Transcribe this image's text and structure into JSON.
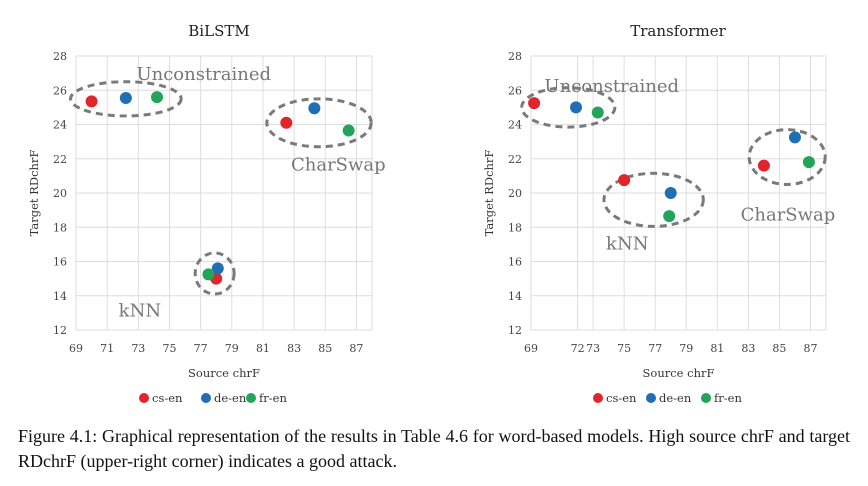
{
  "figure": {
    "legend": [
      {
        "label": "cs-en",
        "color": "#e0262b"
      },
      {
        "label": "de-en",
        "color": "#1f6fb4"
      },
      {
        "label": "fr-en",
        "color": "#22a45a"
      }
    ]
  },
  "chart_data": [
    {
      "type": "scatter",
      "title": "BiLSTM",
      "xlabel": "Source chrF",
      "ylabel": "Target RDchrF",
      "xlim": [
        69,
        88
      ],
      "ylim": [
        12,
        28
      ],
      "xticks": [
        69,
        71,
        73,
        75,
        77,
        79,
        81,
        83,
        85,
        87
      ],
      "yticks": [
        12,
        14,
        16,
        18,
        20,
        22,
        24,
        26,
        28
      ],
      "grid": true,
      "legend": "bottom",
      "series": [
        {
          "name": "cs-en",
          "color": "#e0262b",
          "points": [
            {
              "x": 70.0,
              "y": 25.35
            },
            {
              "x": 82.5,
              "y": 24.1
            },
            {
              "x": 78.0,
              "y": 15.0
            }
          ]
        },
        {
          "name": "de-en",
          "color": "#1f6fb4",
          "points": [
            {
              "x": 72.2,
              "y": 25.55
            },
            {
              "x": 84.3,
              "y": 24.95
            },
            {
              "x": 78.1,
              "y": 15.6
            }
          ]
        },
        {
          "name": "fr-en",
          "color": "#22a45a",
          "points": [
            {
              "x": 74.2,
              "y": 25.6
            },
            {
              "x": 86.5,
              "y": 23.65
            },
            {
              "x": 77.5,
              "y": 15.25
            }
          ]
        }
      ],
      "annotations": [
        {
          "text": "Unconstrained",
          "x": 77.2,
          "y": 26.6,
          "anchor": "middle"
        },
        {
          "text": "CharSwap",
          "x": 82.8,
          "y": 21.3,
          "anchor": "start"
        },
        {
          "text": "kNN",
          "x": 73.1,
          "y": 12.8,
          "anchor": "middle"
        }
      ],
      "clusters": [
        {
          "cx": 72.2,
          "cy": 25.5,
          "rx": 3.55,
          "ry": 1.0
        },
        {
          "cx": 84.6,
          "cy": 24.1,
          "rx": 3.35,
          "ry": 1.4
        },
        {
          "cx": 77.9,
          "cy": 15.3,
          "rx": 1.25,
          "ry": 1.2
        }
      ]
    },
    {
      "type": "scatter",
      "title": "Transformer",
      "xlabel": "Source chrF",
      "ylabel": "Target RDchrF",
      "xlim": [
        69,
        88
      ],
      "ylim": [
        12,
        28
      ],
      "xticks": [
        69,
        72,
        73,
        75,
        77,
        79,
        81,
        83,
        85,
        87
      ],
      "yticks": [
        12,
        14,
        16,
        18,
        20,
        22,
        24,
        26,
        28
      ],
      "grid": true,
      "legend": "bottom",
      "series": [
        {
          "name": "cs-en",
          "color": "#e0262b",
          "points": [
            {
              "x": 69.2,
              "y": 25.25
            },
            {
              "x": 75.0,
              "y": 20.75
            },
            {
              "x": 84.0,
              "y": 21.6
            }
          ]
        },
        {
          "name": "de-en",
          "color": "#1f6fb4",
          "points": [
            {
              "x": 71.9,
              "y": 25.0
            },
            {
              "x": 78.0,
              "y": 20.0
            },
            {
              "x": 86.0,
              "y": 23.25
            }
          ]
        },
        {
          "name": "fr-en",
          "color": "#22a45a",
          "points": [
            {
              "x": 73.3,
              "y": 24.7
            },
            {
              "x": 77.9,
              "y": 18.65
            },
            {
              "x": 86.9,
              "y": 21.8
            }
          ]
        }
      ],
      "annotations": [
        {
          "text": "Unconstrained",
          "x": 74.2,
          "y": 25.9,
          "anchor": "middle"
        },
        {
          "text": "CharSwap",
          "x": 82.5,
          "y": 18.4,
          "anchor": "start"
        },
        {
          "text": "kNN",
          "x": 75.2,
          "y": 16.7,
          "anchor": "middle"
        }
      ],
      "clusters": [
        {
          "cx": 71.4,
          "cy": 25.0,
          "rx": 3.0,
          "ry": 1.15
        },
        {
          "cx": 76.9,
          "cy": 19.6,
          "rx": 3.2,
          "ry": 1.55
        },
        {
          "cx": 85.5,
          "cy": 22.1,
          "rx": 2.45,
          "ry": 1.6
        }
      ]
    }
  ],
  "caption": {
    "text": "Figure 4.1:   Graphical representation of the results in Table 4.6 for word-based models.  High source chrF and target RDchrF (upper-right corner) indicates a good attack."
  }
}
